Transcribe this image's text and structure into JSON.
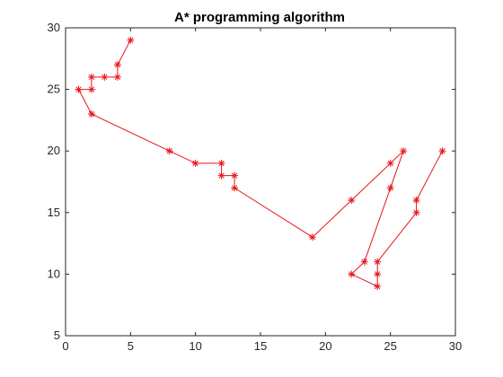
{
  "chart_data": {
    "type": "line",
    "title": "A* programming algorithm",
    "xlabel": "",
    "ylabel": "",
    "xlim": [
      0,
      30
    ],
    "ylim": [
      5,
      30
    ],
    "xticks": [
      0,
      5,
      10,
      15,
      20,
      25,
      30
    ],
    "yticks": [
      5,
      10,
      15,
      20,
      25,
      30
    ],
    "grid": false,
    "marker": "asterisk",
    "series": [
      {
        "color": "#e8141a",
        "x": [
          5,
          4,
          4,
          3,
          2,
          2,
          1,
          2,
          8,
          10,
          12,
          12,
          13,
          13,
          19,
          22,
          25,
          26,
          25,
          23,
          22,
          24,
          24,
          24,
          27,
          27,
          29
        ],
        "y": [
          29,
          27,
          26,
          26,
          26,
          25,
          25,
          23,
          20,
          19,
          19,
          18,
          18,
          17,
          13,
          16,
          19,
          20,
          17,
          11,
          10,
          9,
          10,
          11,
          15,
          16,
          20
        ]
      }
    ]
  }
}
